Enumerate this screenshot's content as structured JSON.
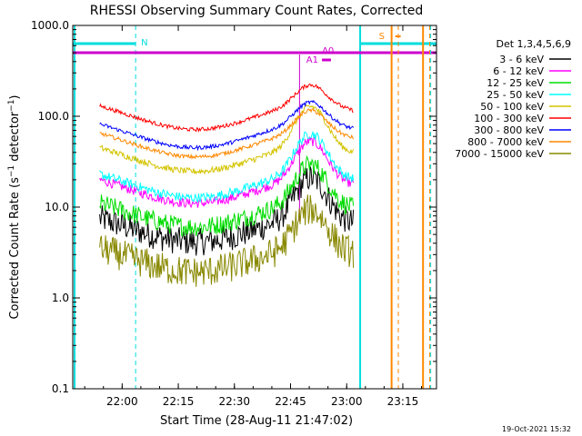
{
  "chart_data": {
    "type": "line",
    "title": "RHESSI Observing Summary Count Rates, Corrected",
    "xlabel": "Start Time (28-Aug-11 21:47:02)",
    "ylabel": "Corrected Count Rate (s⁻¹ detector⁻¹)",
    "ylabel_main": "Corrected Count Rate (s",
    "ylabel_sup1": "−1",
    "ylabel_mid": " detector",
    "ylabel_sup2": "−1",
    "ylabel_end": ")",
    "yscale": "log",
    "ylim": [
      0.1,
      1000
    ],
    "xlim_minutes": [
      21.78,
      23.4
    ],
    "xticks": [
      {
        "label": "22:00",
        "t": 22.0
      },
      {
        "label": "22:15",
        "t": 22.25
      },
      {
        "label": "22:30",
        "t": 22.5
      },
      {
        "label": "22:45",
        "t": 22.75
      },
      {
        "label": "23:00",
        "t": 23.0
      },
      {
        "label": "23:15",
        "t": 23.25
      }
    ],
    "yticks": [
      {
        "label": "0.1",
        "v": 0.1
      },
      {
        "label": "1.0",
        "v": 1
      },
      {
        "label": "10.0",
        "v": 10
      },
      {
        "label": "100.0",
        "v": 100
      },
      {
        "label": "1000.0",
        "v": 1000
      }
    ],
    "legend_title": "Det 1,3,4,5,6,9",
    "legend_position": "top-right",
    "series": [
      {
        "name": "3 - 6 keV",
        "color": "#000000",
        "base": 7.5,
        "peak": 18,
        "noise": 0.35
      },
      {
        "name": "6 - 12 keV",
        "color": "#ff00ff",
        "base": 20,
        "peak": 45,
        "noise": 0.12
      },
      {
        "name": "12 - 25 keV",
        "color": "#00dd00",
        "base": 11,
        "peak": 25,
        "noise": 0.25
      },
      {
        "name": "25 - 50 keV",
        "color": "#00ffff",
        "base": 23,
        "peak": 55,
        "noise": 0.12
      },
      {
        "name": "50 - 100 keV",
        "color": "#d4c400",
        "base": 45,
        "peak": 110,
        "noise": 0.08
      },
      {
        "name": "100 - 300 keV",
        "color": "#ff0000",
        "base": 130,
        "peak": 170,
        "noise": 0.05
      },
      {
        "name": "300 - 800 keV",
        "color": "#0000ff",
        "base": 82,
        "peak": 110,
        "noise": 0.05
      },
      {
        "name": "800 - 7000 keV",
        "color": "#ff8800",
        "base": 65,
        "peak": 90,
        "noise": 0.05
      },
      {
        "name": "7000 - 15000 keV",
        "color": "#888800",
        "base": 3.5,
        "peak": 8,
        "noise": 0.4
      }
    ],
    "annotations": {
      "N": {
        "label": "N",
        "color": "#00dddd"
      },
      "S": {
        "label": "S",
        "color": "#ff8800"
      },
      "A0": {
        "label": "A0",
        "color": "#cc00cc"
      },
      "A1": {
        "label": "A1",
        "color": "#cc00cc"
      }
    },
    "flags": {
      "night_start": 22.06,
      "night_end": 23.06,
      "saa_start": 23.2,
      "saa_end": 23.37,
      "attenuator_level": 480,
      "night_level": 560
    }
  },
  "footer": {
    "timestamp": "19-Oct-2021 15:32"
  }
}
